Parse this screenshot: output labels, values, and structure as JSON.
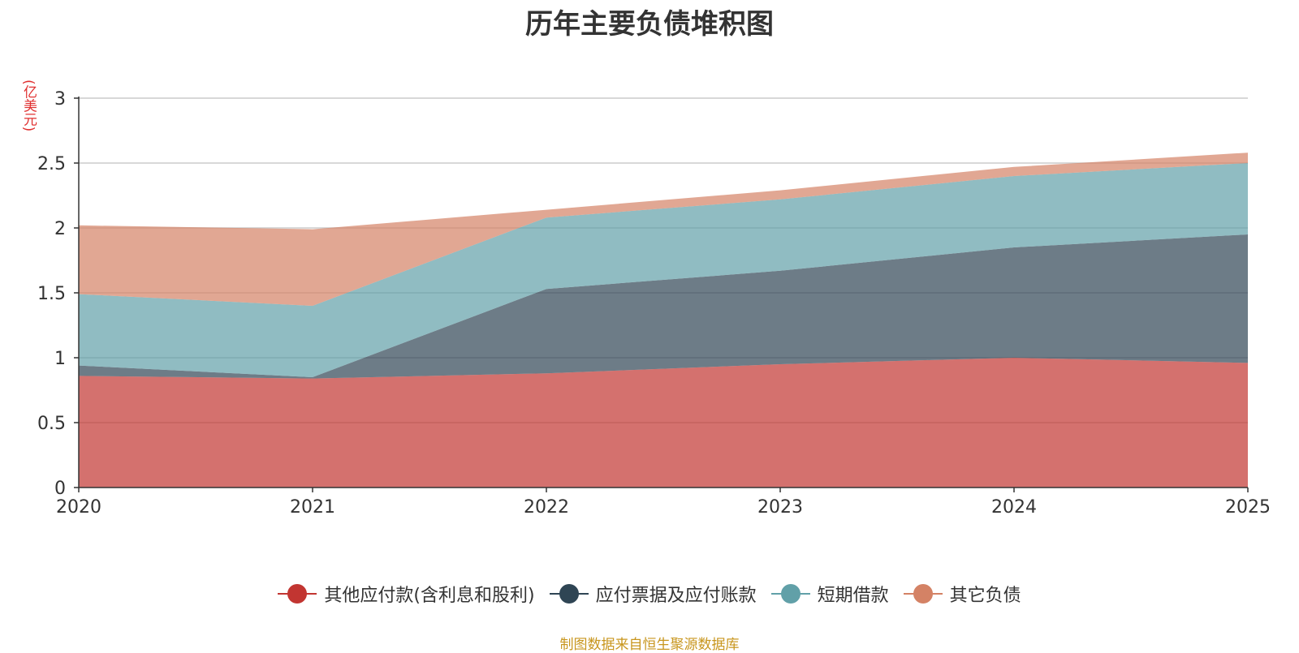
{
  "chart_data": {
    "type": "area",
    "stacked": true,
    "title": "历年主要负债堆积图",
    "ylabel": "(亿美元)",
    "xlabel": "",
    "x": [
      "2020",
      "2021",
      "2022",
      "2023",
      "2024",
      "2025"
    ],
    "ylim": [
      0,
      3
    ],
    "yticks": [
      0,
      0.5,
      1,
      1.5,
      2,
      2.5,
      3
    ],
    "ytick_labels": [
      "0",
      "0.5",
      "1",
      "1.5",
      "2",
      "2.5",
      "3"
    ],
    "grid": true,
    "legend_position": "bottom-center",
    "series": [
      {
        "name": "其他应付款(含利息和股利)",
        "color": "#c23531",
        "values": [
          0.86,
          0.84,
          0.88,
          0.95,
          1.0,
          0.96
        ]
      },
      {
        "name": "应付票据及应付账款",
        "color": "#2f4554",
        "values": [
          0.08,
          0.01,
          0.65,
          0.72,
          0.85,
          0.99
        ]
      },
      {
        "name": "短期借款",
        "color": "#61a0a8",
        "values": [
          0.55,
          0.55,
          0.55,
          0.55,
          0.55,
          0.55
        ]
      },
      {
        "name": "其它负债",
        "color": "#d48265",
        "values": [
          0.53,
          0.59,
          0.06,
          0.07,
          0.07,
          0.08
        ]
      }
    ],
    "source": "制图数据来自恒生聚源数据库"
  }
}
